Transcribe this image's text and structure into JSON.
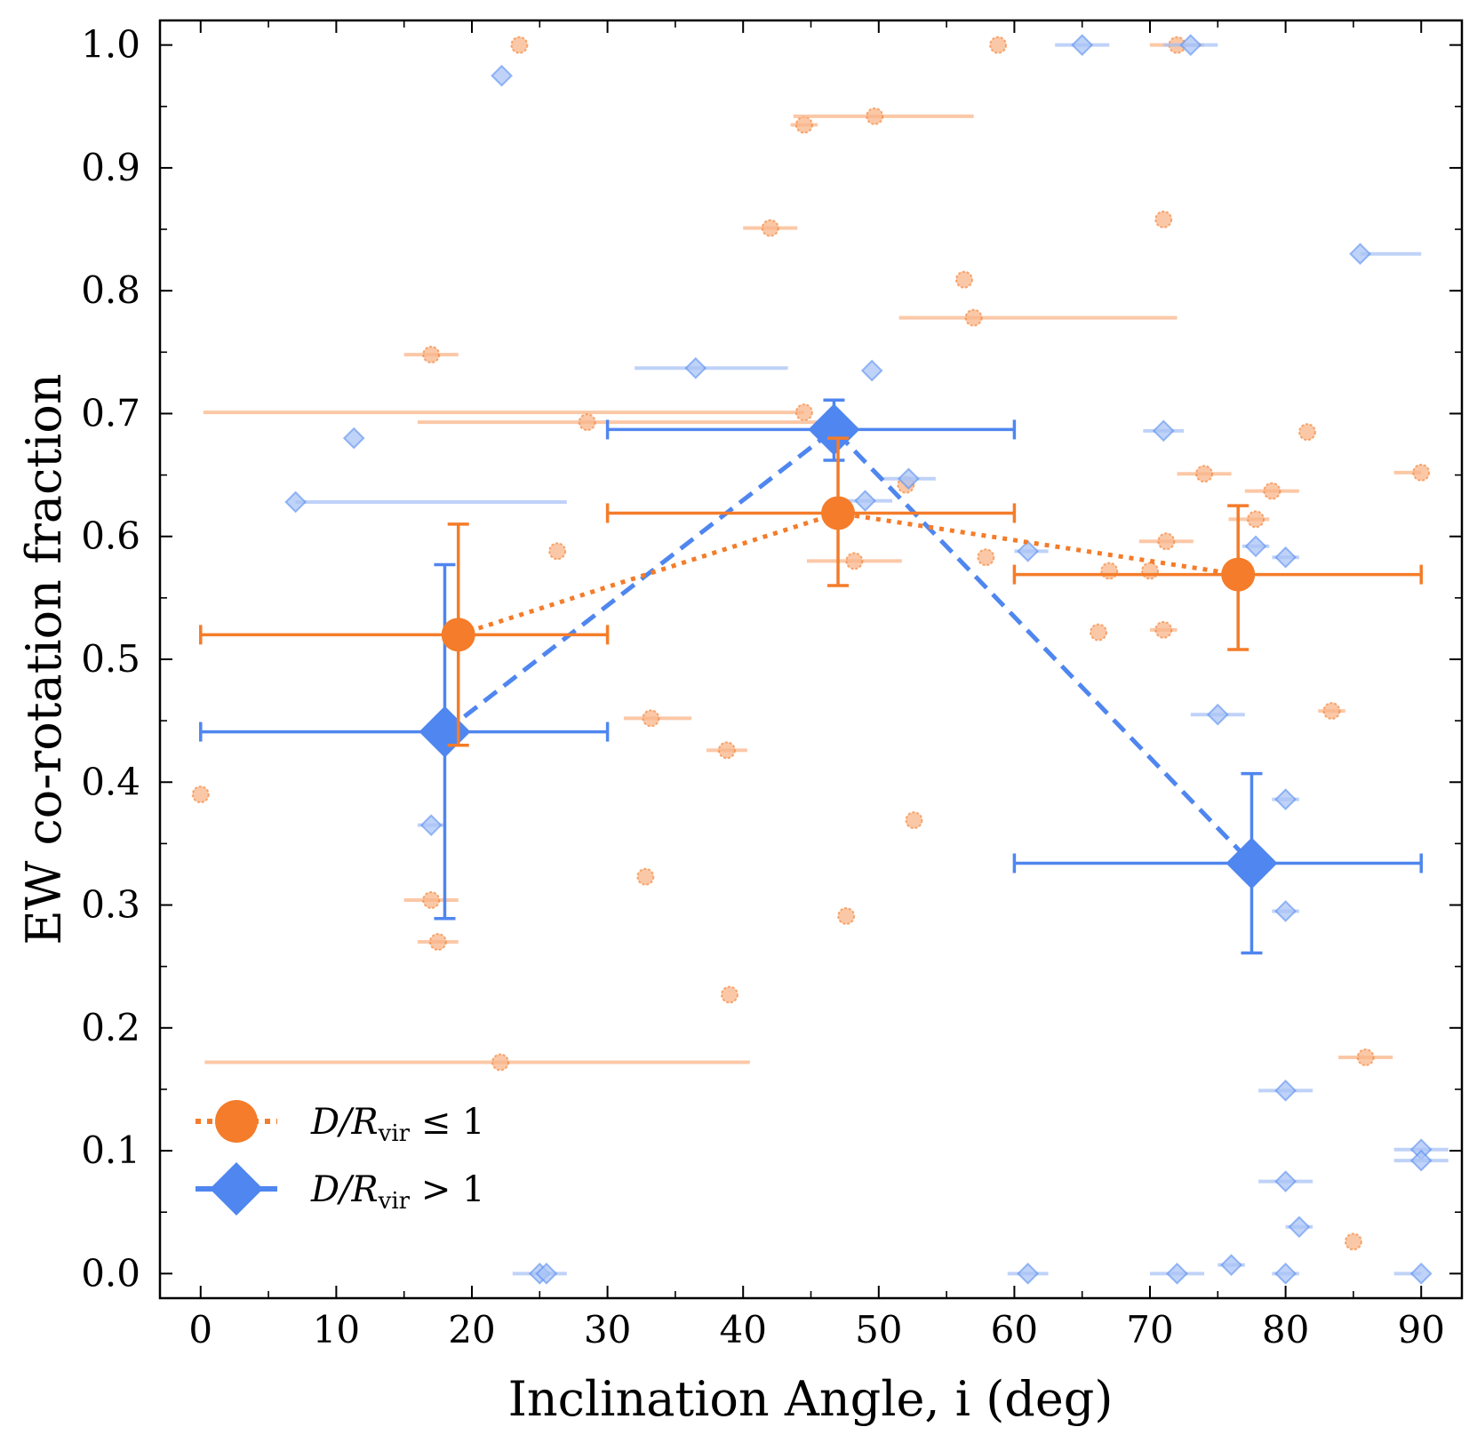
{
  "chart_data": {
    "type": "scatter",
    "xlabel": "Inclination Angle, i (deg)",
    "ylabel": "EW co-rotation fraction",
    "xlim": [
      -3,
      93
    ],
    "ylim": [
      -0.02,
      1.02
    ],
    "xticks": [
      0,
      10,
      20,
      30,
      40,
      50,
      60,
      70,
      80,
      90
    ],
    "yticks": [
      0.0,
      0.1,
      0.2,
      0.3,
      0.4,
      0.5,
      0.6,
      0.7,
      0.8,
      0.9,
      1.0
    ],
    "xtick_labels": [
      "0",
      "10",
      "20",
      "30",
      "40",
      "50",
      "60",
      "70",
      "80",
      "90"
    ],
    "ytick_labels": [
      "0.0",
      "0.1",
      "0.2",
      "0.3",
      "0.4",
      "0.5",
      "0.6",
      "0.7",
      "0.8",
      "0.9",
      "1.0"
    ],
    "colors": {
      "inner": "#f47c2a",
      "inner_light": "#f9b68a",
      "outer": "#4f86ef",
      "outer_light": "#a9c3f5"
    },
    "legend": {
      "position": "bottom-left",
      "entries": [
        {
          "series": "inner",
          "prefix": "D/R",
          "sub": "vir",
          "suffix": " ≤ 1"
        },
        {
          "series": "outer",
          "prefix": "D/R",
          "sub": "vir",
          "suffix": " > 1"
        }
      ]
    },
    "series": [
      {
        "name": "D/Rvir ≤ 1",
        "key": "inner",
        "individual_points": [
          {
            "x": 0,
            "y": 0.39
          },
          {
            "x": 23.5,
            "y": 1.0
          },
          {
            "x": 58.8,
            "y": 1.0
          },
          {
            "x": 72,
            "y": 1.0,
            "xerr": [
              2,
              2
            ]
          },
          {
            "x": 44.5,
            "y": 0.935,
            "xerr": [
              1,
              1
            ]
          },
          {
            "x": 49.7,
            "y": 0.942,
            "xerr": [
              6,
              7.3
            ]
          },
          {
            "x": 42,
            "y": 0.851,
            "xerr": [
              2,
              2
            ]
          },
          {
            "x": 71,
            "y": 0.858
          },
          {
            "x": 56.3,
            "y": 0.809
          },
          {
            "x": 57,
            "y": 0.778,
            "xerr": [
              5.5,
              15
            ]
          },
          {
            "x": 17,
            "y": 0.748,
            "xerr": [
              2,
              2
            ]
          },
          {
            "x": 44.5,
            "y": 0.701,
            "xerr": [
              44.3,
              0
            ]
          },
          {
            "x": 28.5,
            "y": 0.693,
            "xerr": [
              12.5,
              17
            ]
          },
          {
            "x": 81.6,
            "y": 0.685
          },
          {
            "x": 74,
            "y": 0.651,
            "xerr": [
              2,
              2
            ]
          },
          {
            "x": 90,
            "y": 0.652,
            "xerr": [
              2,
              0
            ]
          },
          {
            "x": 52,
            "y": 0.642
          },
          {
            "x": 79,
            "y": 0.637,
            "xerr": [
              2,
              2
            ]
          },
          {
            "x": 77.8,
            "y": 0.614,
            "xerr": [
              2,
              1
            ]
          },
          {
            "x": 26.3,
            "y": 0.588
          },
          {
            "x": 71.2,
            "y": 0.596,
            "xerr": [
              2,
              2
            ]
          },
          {
            "x": 57.9,
            "y": 0.583
          },
          {
            "x": 48.2,
            "y": 0.58,
            "xerr": [
              3.5,
              3.5
            ]
          },
          {
            "x": 67,
            "y": 0.572
          },
          {
            "x": 70,
            "y": 0.572
          },
          {
            "x": 66.2,
            "y": 0.522
          },
          {
            "x": 71,
            "y": 0.524,
            "xerr": [
              1,
              1
            ]
          },
          {
            "x": 33.2,
            "y": 0.452,
            "xerr": [
              2,
              3
            ]
          },
          {
            "x": 83.4,
            "y": 0.458,
            "xerr": [
              1,
              1
            ]
          },
          {
            "x": 38.8,
            "y": 0.426,
            "xerr": [
              1.5,
              1.5
            ]
          },
          {
            "x": 52.6,
            "y": 0.369
          },
          {
            "x": 32.8,
            "y": 0.323
          },
          {
            "x": 17,
            "y": 0.304,
            "xerr": [
              2,
              2
            ]
          },
          {
            "x": 47.6,
            "y": 0.291
          },
          {
            "x": 17.5,
            "y": 0.27,
            "xerr": [
              1.5,
              1.5
            ]
          },
          {
            "x": 39,
            "y": 0.227
          },
          {
            "x": 22.1,
            "y": 0.172,
            "xerr": [
              21.8,
              18.4
            ]
          },
          {
            "x": 85.9,
            "y": 0.176,
            "xerr": [
              2,
              2
            ]
          },
          {
            "x": 85,
            "y": 0.026
          }
        ],
        "binned_points": [
          {
            "x": 19,
            "y": 0.52,
            "xerr": [
              19,
              11
            ],
            "yerr": [
              0.09,
              0.09
            ]
          },
          {
            "x": 47,
            "y": 0.619,
            "xerr": [
              17,
              13
            ],
            "yerr": [
              0.059,
              0.061
            ]
          },
          {
            "x": 76.5,
            "y": 0.569,
            "xerr": [
              16.5,
              13.5
            ],
            "yerr": [
              0.061,
              0.056
            ]
          }
        ]
      },
      {
        "name": "D/Rvir > 1",
        "key": "outer",
        "individual_points": [
          {
            "x": 22.2,
            "y": 0.975
          },
          {
            "x": 65,
            "y": 1.0,
            "xerr": [
              2,
              2
            ]
          },
          {
            "x": 73,
            "y": 1.0,
            "xerr": [
              2,
              2
            ]
          },
          {
            "x": 85.5,
            "y": 0.83,
            "xerr": [
              0,
              4.5
            ]
          },
          {
            "x": 36.5,
            "y": 0.737,
            "xerr": [
              4.5,
              6.8
            ]
          },
          {
            "x": 49.5,
            "y": 0.735
          },
          {
            "x": 11.3,
            "y": 0.68
          },
          {
            "x": 71,
            "y": 0.686,
            "xerr": [
              1.5,
              1.5
            ]
          },
          {
            "x": 7,
            "y": 0.628,
            "xerr": [
              0,
              20
            ]
          },
          {
            "x": 52.2,
            "y": 0.647,
            "xerr": [
              2,
              2
            ]
          },
          {
            "x": 49,
            "y": 0.629,
            "xerr": [
              2,
              2
            ]
          },
          {
            "x": 61,
            "y": 0.588,
            "xerr": [
              1,
              1.5
            ]
          },
          {
            "x": 77.8,
            "y": 0.592,
            "xerr": [
              1,
              1
            ]
          },
          {
            "x": 80,
            "y": 0.583,
            "xerr": [
              1,
              1
            ]
          },
          {
            "x": 75,
            "y": 0.455,
            "xerr": [
              2,
              2
            ]
          },
          {
            "x": 80,
            "y": 0.386,
            "xerr": [
              1,
              1
            ]
          },
          {
            "x": 17,
            "y": 0.365,
            "xerr": [
              1,
              1
            ]
          },
          {
            "x": 80,
            "y": 0.295,
            "xerr": [
              1,
              1
            ]
          },
          {
            "x": 80,
            "y": 0.149,
            "xerr": [
              2,
              2
            ]
          },
          {
            "x": 90,
            "y": 0.101,
            "xerr": [
              2,
              2
            ]
          },
          {
            "x": 90,
            "y": 0.092,
            "xerr": [
              2,
              2
            ]
          },
          {
            "x": 80,
            "y": 0.075,
            "xerr": [
              2,
              2
            ]
          },
          {
            "x": 81,
            "y": 0.038,
            "xerr": [
              1,
              1
            ]
          },
          {
            "x": 25,
            "y": 0.0,
            "xerr": [
              2,
              2
            ]
          },
          {
            "x": 25.5,
            "y": 0.0
          },
          {
            "x": 61,
            "y": 0.0,
            "xerr": [
              1.5,
              1.5
            ]
          },
          {
            "x": 72,
            "y": 0.0,
            "xerr": [
              2,
              2
            ]
          },
          {
            "x": 76,
            "y": 0.007,
            "xerr": [
              1,
              1
            ]
          },
          {
            "x": 80,
            "y": 0.0,
            "xerr": [
              1,
              1
            ]
          },
          {
            "x": 90,
            "y": 0.0,
            "xerr": [
              2,
              0
            ]
          }
        ],
        "binned_points": [
          {
            "x": 18,
            "y": 0.441,
            "xerr": [
              18,
              12
            ],
            "yerr": [
              0.152,
              0.136
            ]
          },
          {
            "x": 46.7,
            "y": 0.687,
            "xerr": [
              16.7,
              13.3
            ],
            "yerr": [
              0.025,
              0.024
            ]
          },
          {
            "x": 77.5,
            "y": 0.334,
            "xerr": [
              17.5,
              12.5
            ],
            "yerr": [
              0.073,
              0.073
            ]
          }
        ]
      }
    ]
  }
}
